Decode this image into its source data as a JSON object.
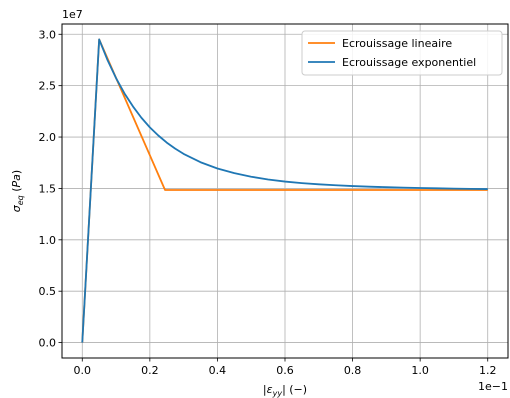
{
  "chart_data": {
    "type": "line",
    "title": "",
    "xlabel": "|ε_yy| (−)",
    "ylabel": "σ_eq (Pa)",
    "x_offset_text": "1e−1",
    "y_offset_text": "1e7",
    "x_scale": 0.1,
    "y_scale": 10000000,
    "xlim": [
      -0.006,
      0.126
    ],
    "ylim": [
      -1500000,
      31000000
    ],
    "xticks": [
      0.0,
      0.02,
      0.04,
      0.06,
      0.08,
      0.1,
      0.12
    ],
    "xtick_labels": [
      "0.0",
      "0.2",
      "0.4",
      "0.6",
      "0.8",
      "1.0",
      "1.2"
    ],
    "yticks": [
      0,
      5000000,
      10000000,
      15000000,
      20000000,
      25000000,
      30000000
    ],
    "ytick_labels": [
      "0.0",
      "0.5",
      "1.0",
      "1.5",
      "2.0",
      "2.5",
      "3.0"
    ],
    "grid": true,
    "legend_position": "top-right",
    "series": [
      {
        "name": "Ecrouissage lineaire",
        "color": "#ff7f0e",
        "x": [
          0.0,
          0.005,
          0.0245,
          0.12
        ],
        "y": [
          0,
          29500000,
          14850000,
          14850000
        ]
      },
      {
        "name": "Ecrouissage exponentiel",
        "color": "#1f77b4",
        "x": [
          0.0,
          0.005,
          0.0075,
          0.01,
          0.0125,
          0.015,
          0.0175,
          0.02,
          0.0225,
          0.025,
          0.0275,
          0.03,
          0.035,
          0.04,
          0.045,
          0.05,
          0.055,
          0.06,
          0.065,
          0.07,
          0.075,
          0.08,
          0.085,
          0.09,
          0.095,
          0.1,
          0.105,
          0.11,
          0.115,
          0.12
        ],
        "y": [
          0,
          29500000,
          27470000,
          25730000,
          24240000,
          22980000,
          21880000,
          20940000,
          20150000,
          19460000,
          18870000,
          18360000,
          17550000,
          16940000,
          16490000,
          16140000,
          15870000,
          15670000,
          15520000,
          15400000,
          15310000,
          15230000,
          15170000,
          15120000,
          15080000,
          15040000,
          15010000,
          14980000,
          14960000,
          14940000
        ]
      }
    ]
  }
}
